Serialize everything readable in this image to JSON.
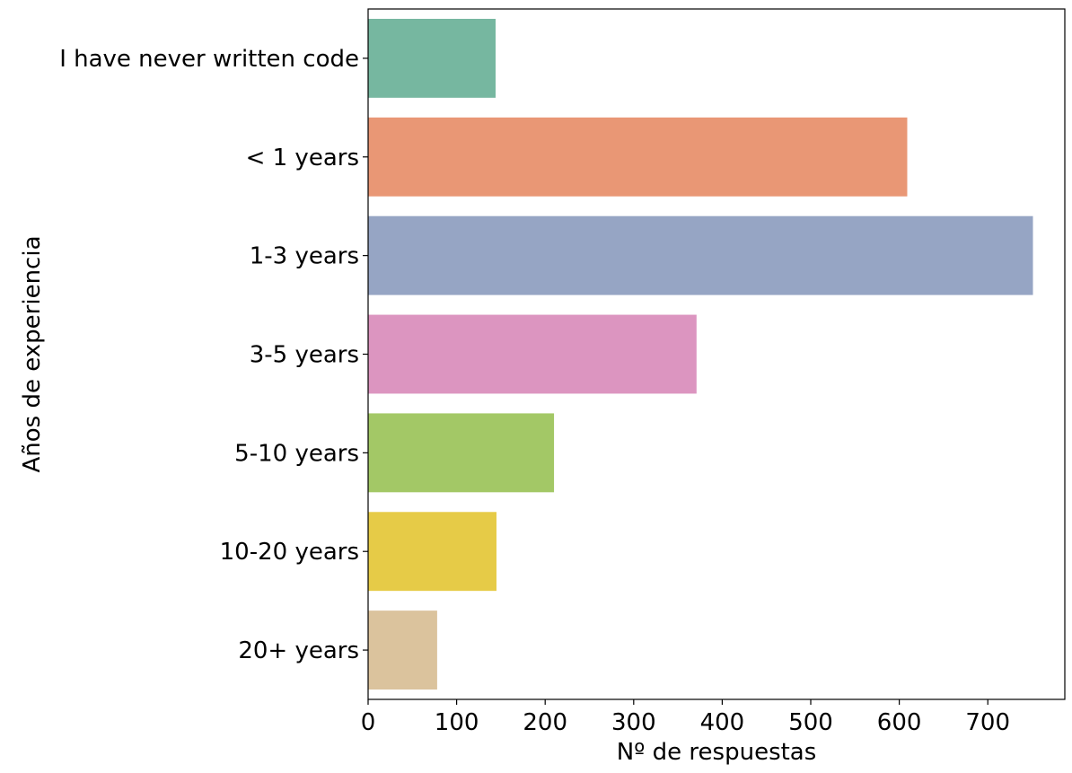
{
  "chart_data": {
    "type": "bar",
    "orientation": "horizontal",
    "title": "",
    "xlabel": "Nº de respuestas",
    "ylabel": "Años de experiencia",
    "xlim": [
      0,
      787
    ],
    "x_ticks": [
      0,
      100,
      200,
      300,
      400,
      500,
      600,
      700
    ],
    "grid": false,
    "categories": [
      "I have never written code",
      "< 1 years",
      "1-3 years",
      "3-5 years",
      "5-10 years",
      "10-20 years",
      "20+ years"
    ],
    "values": [
      144,
      609,
      751,
      371,
      210,
      145,
      78
    ],
    "colors": [
      "#76b7a0",
      "#e99775",
      "#96a5c4",
      "#dc95c0",
      "#a3c866",
      "#e6cb47",
      "#dbc39d"
    ]
  }
}
